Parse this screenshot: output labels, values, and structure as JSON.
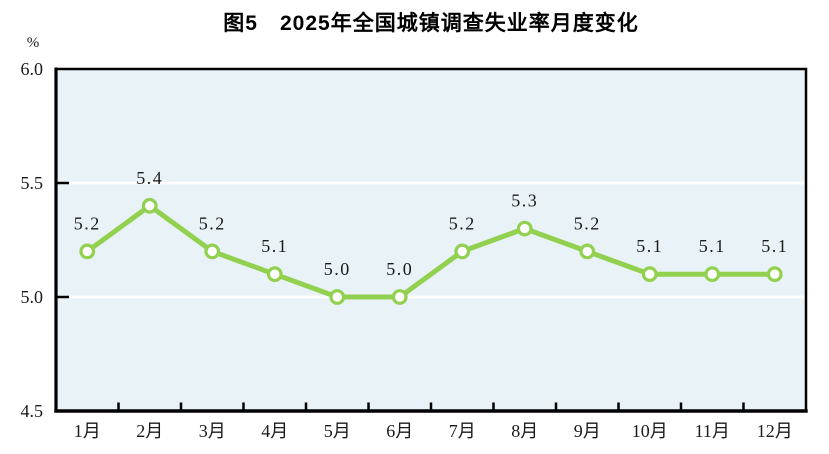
{
  "figure": {
    "title": "图5　2025年全国城镇调查失业率月度变化",
    "unit": "%"
  },
  "chart_data": {
    "type": "line",
    "title": "图5　2025年全国城镇调查失业率月度变化",
    "unit": "%",
    "categories": [
      "1月",
      "2月",
      "3月",
      "4月",
      "5月",
      "6月",
      "7月",
      "8月",
      "9月",
      "10月",
      "11月",
      "12月"
    ],
    "values": [
      5.2,
      5.4,
      5.2,
      5.1,
      5.0,
      5.0,
      5.2,
      5.3,
      5.2,
      5.1,
      5.1,
      5.1
    ],
    "data_labels": [
      "5.2",
      "5.4",
      "5.2",
      "5.1",
      "5.0",
      "5.0",
      "5.2",
      "5.3",
      "5.2",
      "5.1",
      "5.1",
      "5.1"
    ],
    "xlabel": "",
    "ylabel": "%",
    "ylim": [
      4.5,
      6.0
    ],
    "yticks": [
      4.5,
      5.0,
      5.5,
      6.0
    ],
    "ytick_labels": [
      "4.5",
      "5.0",
      "5.5",
      "6.0"
    ],
    "grid": true,
    "legend": "none",
    "style": {
      "line_color": "#92d050",
      "marker_fill": "#ffffff",
      "plot_bg": "#e9f2f6",
      "gridline_color": "#ffffff",
      "axis_color": "#000000",
      "text_color": "#1a1a1a"
    }
  }
}
